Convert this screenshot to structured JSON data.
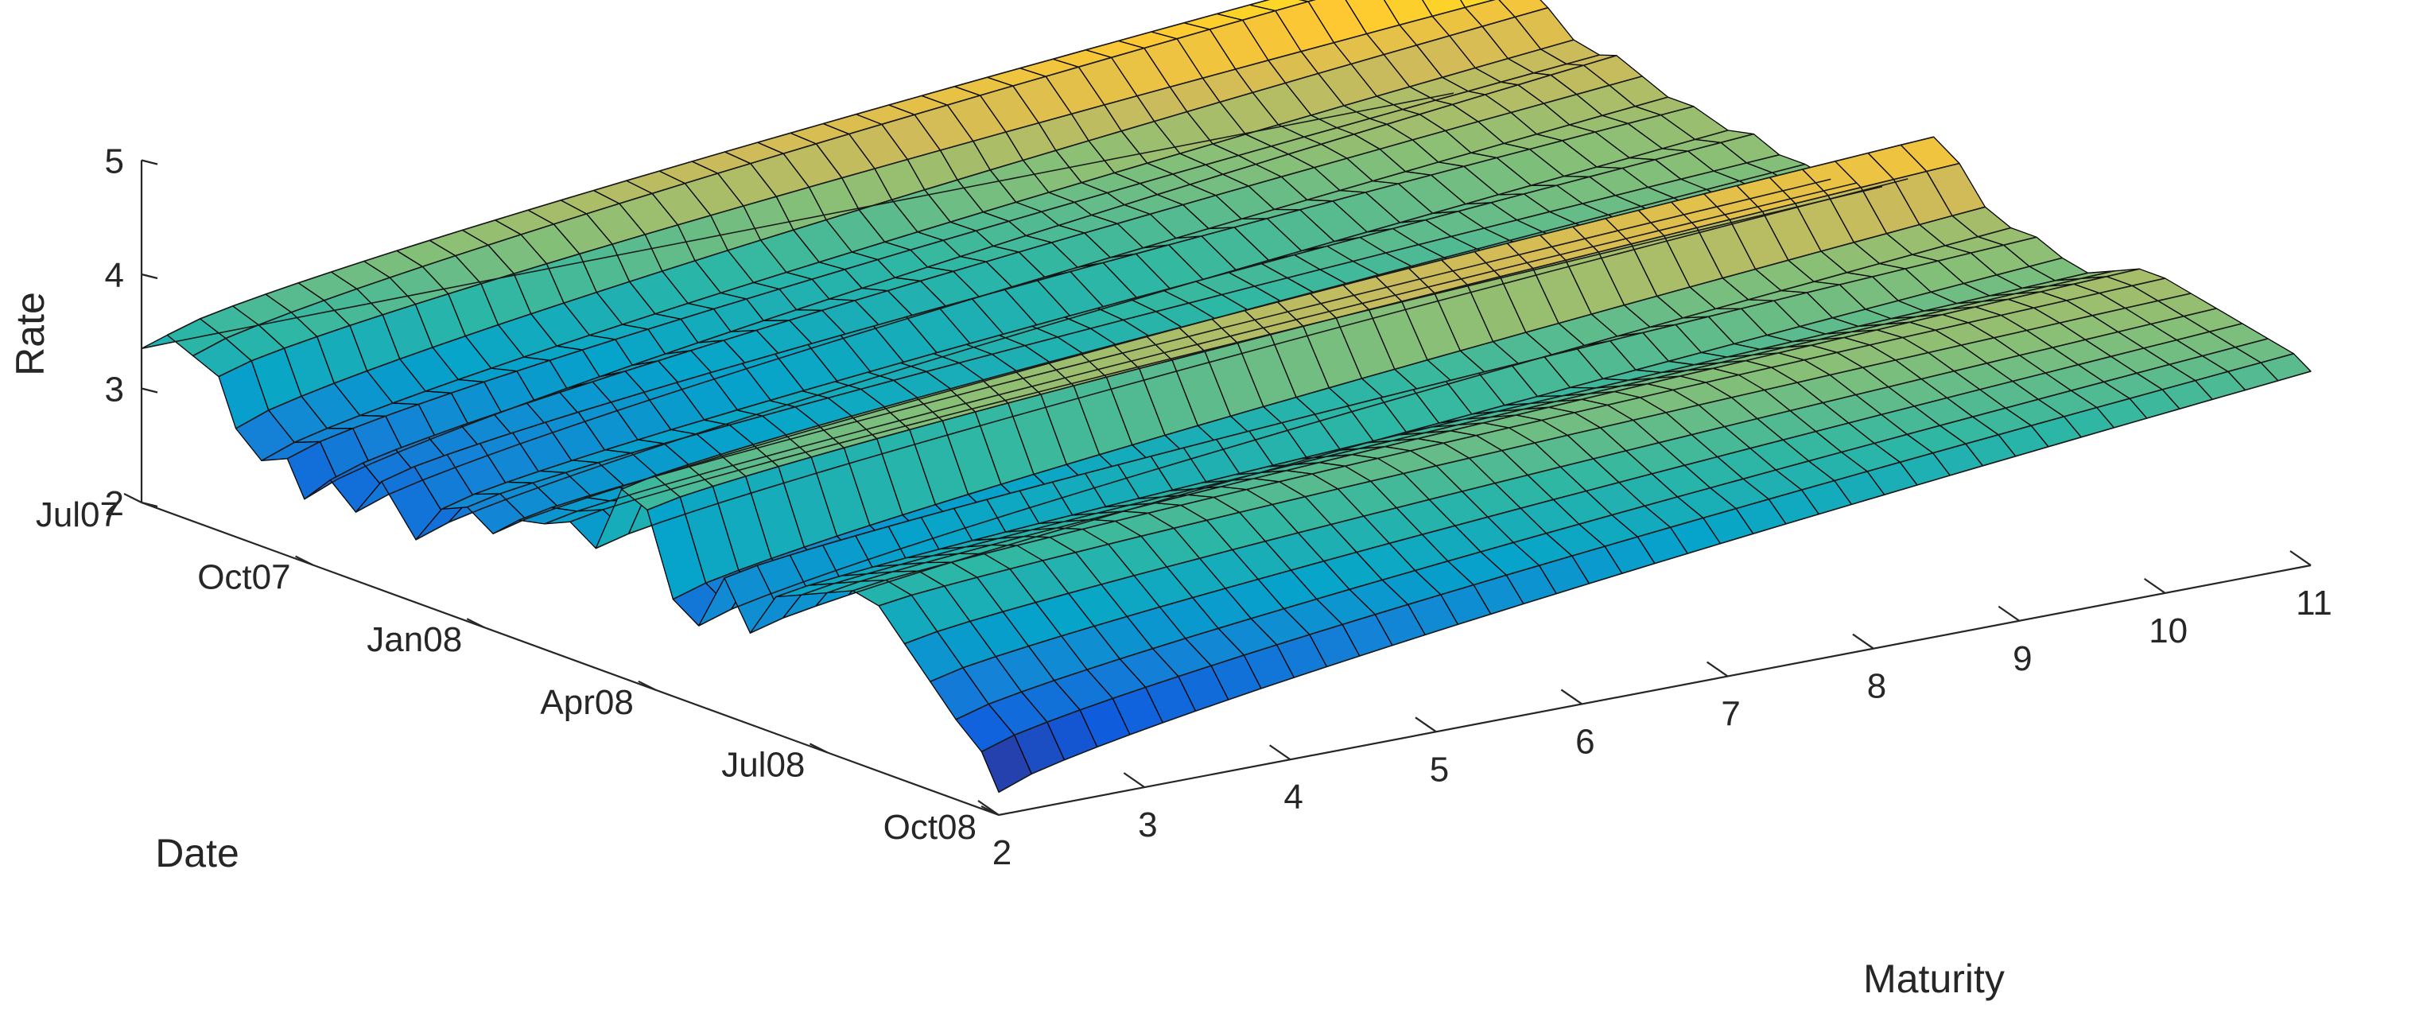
{
  "chart_data": {
    "type": "surface",
    "title": "",
    "xlabel": "Maturity",
    "ylabel": "Date",
    "zlabel": "Rate",
    "x_ticks": [
      2,
      3,
      4,
      5,
      6,
      7,
      8,
      9,
      10,
      11
    ],
    "x_range": [
      2,
      11
    ],
    "y_ticks": [
      "Jul07",
      "Oct07",
      "Jan08",
      "Apr08",
      "Jul08",
      "Oct08"
    ],
    "y_range": [
      "Jul07",
      "Oct08"
    ],
    "z_ticks": [
      2,
      3,
      4,
      5
    ],
    "z_range": [
      2,
      5
    ],
    "grid": false,
    "legend": "none",
    "colormap": "parula",
    "colormap_stops": [
      "#352a87",
      "#0f5cdd",
      "#1481d6",
      "#06a4ca",
      "#2eb7a4",
      "#87bf77",
      "#d1bb59",
      "#fec832",
      "#f9fb0e"
    ],
    "surface_profiles": [
      {
        "date_frac": 0.0,
        "start": 3.35,
        "end": 3.4
      },
      {
        "date_frac": 0.03,
        "start": 3.55,
        "end": 4.8
      },
      {
        "date_frac": 0.06,
        "start": 3.45,
        "end": 4.85
      },
      {
        "date_frac": 0.09,
        "start": 3.35,
        "end": 4.55
      },
      {
        "date_frac": 0.11,
        "start": 2.95,
        "end": 4.45
      },
      {
        "date_frac": 0.14,
        "start": 2.75,
        "end": 4.25
      },
      {
        "date_frac": 0.17,
        "start": 2.85,
        "end": 4.2
      },
      {
        "date_frac": 0.19,
        "start": 2.55,
        "end": 4.25
      },
      {
        "date_frac": 0.22,
        "start": 2.8,
        "end": 4.15
      },
      {
        "date_frac": 0.25,
        "start": 2.6,
        "end": 4.05
      },
      {
        "date_frac": 0.28,
        "start": 2.95,
        "end": 4.05
      },
      {
        "date_frac": 0.32,
        "start": 2.55,
        "end": 3.95
      },
      {
        "date_frac": 0.35,
        "start": 2.9,
        "end": 4.0
      },
      {
        "date_frac": 0.38,
        "start": 3.0,
        "end": 3.9
      },
      {
        "date_frac": 0.41,
        "start": 2.85,
        "end": 3.9
      },
      {
        "date_frac": 0.44,
        "start": 3.05,
        "end": 3.85
      },
      {
        "date_frac": 0.47,
        "start": 3.1,
        "end": 3.9
      },
      {
        "date_frac": 0.5,
        "start": 3.2,
        "end": 3.95
      },
      {
        "date_frac": 0.53,
        "start": 3.05,
        "end": 4.1
      },
      {
        "date_frac": 0.56,
        "start": 3.65,
        "end": 4.55
      },
      {
        "date_frac": 0.59,
        "start": 3.55,
        "end": 4.4
      },
      {
        "date_frac": 0.62,
        "start": 2.85,
        "end": 4.1
      },
      {
        "date_frac": 0.65,
        "start": 2.7,
        "end": 4.0
      },
      {
        "date_frac": 0.68,
        "start": 3.2,
        "end": 4.0
      },
      {
        "date_frac": 0.71,
        "start": 2.8,
        "end": 3.9
      },
      {
        "date_frac": 0.74,
        "start": 3.2,
        "end": 3.85
      },
      {
        "date_frac": 0.77,
        "start": 3.3,
        "end": 3.95
      },
      {
        "date_frac": 0.8,
        "start": 3.4,
        "end": 4.05
      },
      {
        "date_frac": 0.83,
        "start": 3.5,
        "end": 4.05
      },
      {
        "date_frac": 0.86,
        "start": 3.45,
        "end": 4.0
      },
      {
        "date_frac": 0.89,
        "start": 3.2,
        "end": 3.95
      },
      {
        "date_frac": 0.92,
        "start": 2.95,
        "end": 3.9
      },
      {
        "date_frac": 0.95,
        "start": 2.7,
        "end": 3.85
      },
      {
        "date_frac": 0.98,
        "start": 2.5,
        "end": 3.8
      },
      {
        "date_frac": 1.0,
        "start": 2.2,
        "end": 3.7
      }
    ]
  }
}
